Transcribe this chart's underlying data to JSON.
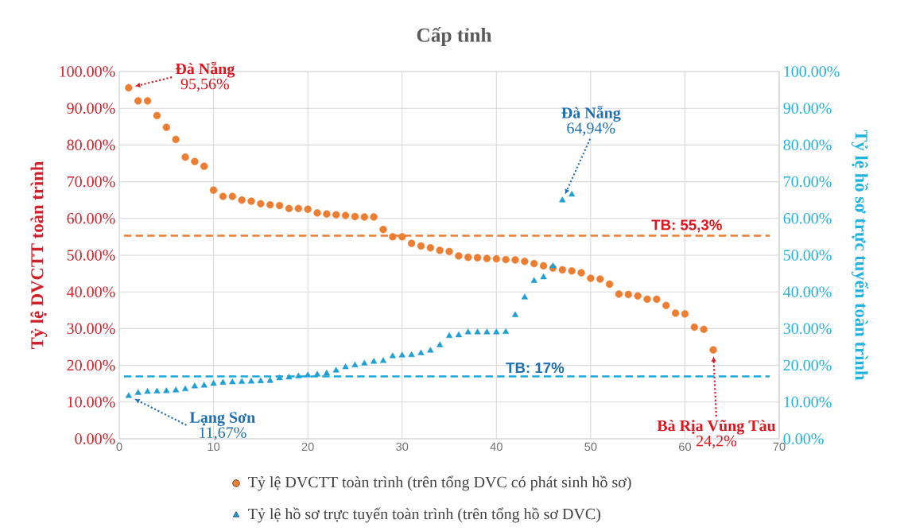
{
  "chart_data": {
    "type": "scatter",
    "title": "Cấp tỉnh",
    "ylabel": "Tỷ lệ DVCTT toàn trình",
    "y2label": "Tỷ lệ hồ sơ trực tuyến toàn trình",
    "xlim": [
      0,
      70
    ],
    "xticks": [
      0,
      10,
      20,
      30,
      40,
      50,
      60,
      70
    ],
    "ylim": [
      0,
      100
    ],
    "yticks": [
      {
        "value": 0,
        "label": "0.00%"
      },
      {
        "value": 10,
        "label": "10.00%"
      },
      {
        "value": 20,
        "label": "20.00%"
      },
      {
        "value": 30,
        "label": "30.00%"
      },
      {
        "value": 40,
        "label": "40.00%"
      },
      {
        "value": 50,
        "label": "50.00%"
      },
      {
        "value": 60,
        "label": "60.00%"
      },
      {
        "value": 70,
        "label": "70.00%"
      },
      {
        "value": 80,
        "label": "80.00%"
      },
      {
        "value": 90,
        "label": "90.00%"
      },
      {
        "value": 100,
        "label": "100.00%"
      }
    ],
    "y2lim": [
      0,
      100
    ],
    "y2ticks": [
      {
        "value": 0,
        "label": "0.00%"
      },
      {
        "value": 10,
        "label": "10.00%"
      },
      {
        "value": 20,
        "label": "20.00%"
      },
      {
        "value": 30,
        "label": "30.00%"
      },
      {
        "value": 40,
        "label": "40.00%"
      },
      {
        "value": 50,
        "label": "50.00%"
      },
      {
        "value": 60,
        "label": "60.00%"
      },
      {
        "value": 70,
        "label": "70.00%"
      },
      {
        "value": 80,
        "label": "80.00%"
      },
      {
        "value": 90,
        "label": "90.00%"
      },
      {
        "value": 100,
        "label": "100.00%"
      }
    ],
    "grid": true,
    "legend": "bottom",
    "series": [
      {
        "name": "Tỷ lệ DVCTT toàn trình (trên tổng DVC có phát sinh hồ sơ)",
        "color": "#ed7d31",
        "marker": "circle",
        "x": [
          1,
          2,
          3,
          4,
          5,
          6,
          7,
          8,
          9,
          10,
          11,
          12,
          13,
          14,
          15,
          16,
          17,
          18,
          19,
          20,
          21,
          22,
          23,
          24,
          25,
          26,
          27,
          28,
          29,
          30,
          31,
          32,
          33,
          34,
          35,
          36,
          37,
          38,
          39,
          40,
          41,
          42,
          43,
          44,
          45,
          46,
          47,
          48,
          49,
          50,
          51,
          52,
          53,
          54,
          55,
          56,
          57,
          58,
          59,
          60,
          61,
          62,
          63
        ],
        "values": [
          95.56,
          92,
          92,
          88,
          84.8,
          81.5,
          76.7,
          75.5,
          74.2,
          67.7,
          66,
          66,
          65,
          64.7,
          64,
          63.7,
          63.5,
          62.7,
          62.7,
          62.5,
          61.5,
          61.2,
          61,
          60.8,
          60.5,
          60.4,
          60.4,
          57,
          55,
          55,
          53.2,
          52.5,
          52,
          51.3,
          51,
          49.8,
          49.4,
          49.3,
          49.1,
          49,
          48.8,
          48.7,
          48.3,
          47.7,
          47.1,
          46.5,
          46,
          45.7,
          45.2,
          43.7,
          43.5,
          42.1,
          39.4,
          39.3,
          38.9,
          38,
          38,
          36.3,
          34.2,
          34,
          30.4,
          29.8,
          24.2
        ]
      },
      {
        "name": "Tỷ lệ hồ sơ trực tuyến toàn trình (trên tổng hồ sơ DVC)",
        "color": "#1f9fd4",
        "marker": "triangle",
        "axis": "y2",
        "x": [
          1,
          2,
          3,
          4,
          5,
          6,
          7,
          8,
          9,
          10,
          11,
          12,
          13,
          14,
          15,
          16,
          17,
          18,
          19,
          20,
          21,
          22,
          23,
          24,
          25,
          26,
          27,
          28,
          29,
          30,
          31,
          32,
          33,
          34,
          35,
          36,
          37,
          38,
          39,
          40,
          41,
          42,
          43,
          44,
          45,
          46,
          47,
          48
        ],
        "values": [
          11.67,
          12.5,
          12.8,
          12.9,
          13,
          13.2,
          13.5,
          14.3,
          14.5,
          15,
          15.3,
          15.4,
          15.5,
          15.6,
          15.7,
          15.8,
          16.5,
          16.7,
          17,
          17.3,
          17.5,
          17.8,
          18.6,
          19.5,
          20,
          20.5,
          21,
          21.2,
          22.5,
          22.7,
          22.8,
          23.3,
          24,
          25.5,
          28,
          28.2,
          29,
          29,
          29,
          29,
          29.1,
          33.7,
          38.5,
          43,
          44,
          47,
          64.94,
          66.5
        ]
      }
    ],
    "ref_lines": [
      {
        "axis": "y",
        "value": 55.3,
        "label": "TB: 55,3%",
        "color": "#ed7d31",
        "line_style": "dashed"
      },
      {
        "axis": "y2",
        "value": 17,
        "label": "TB: 17%",
        "color": "#1aa7dc",
        "line_style": "dashed"
      }
    ],
    "annotations": [
      "Đà Nẵng",
      "95,56%",
      "Đà Nẵng",
      "64,94%",
      "Lạng Sơn",
      "11,67%",
      "Bà Rịa Vũng Tàu",
      "24,2%"
    ]
  }
}
